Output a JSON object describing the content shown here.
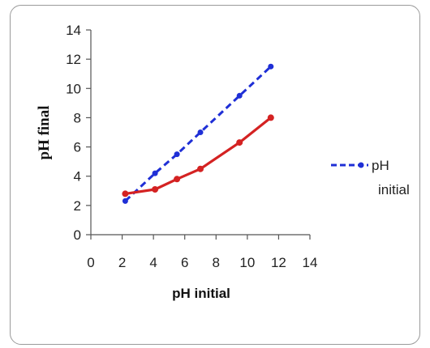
{
  "chart_data": {
    "type": "line",
    "xlabel": "pH initial",
    "ylabel": "pH final",
    "xlim": [
      0,
      14
    ],
    "ylim": [
      0,
      14
    ],
    "xticks": [
      "0",
      "2",
      "4",
      "6",
      "8",
      "10",
      "12",
      "14"
    ],
    "yticks": [
      "0",
      "2",
      "4",
      "6",
      "8",
      "10",
      "12",
      "14"
    ],
    "grid": false,
    "legend_position": "right",
    "series": [
      {
        "name": "pH initial",
        "style": "dashed",
        "color": "#1f2fd6",
        "x": [
          2.2,
          4.1,
          5.5,
          7.0,
          9.5,
          11.5
        ],
        "y": [
          2.3,
          4.2,
          5.5,
          7.0,
          9.5,
          11.5
        ]
      },
      {
        "style": "solid",
        "color": "#d42222",
        "x": [
          2.2,
          4.1,
          5.5,
          7.0,
          9.5,
          11.5
        ],
        "y": [
          2.8,
          3.1,
          3.8,
          4.5,
          6.3,
          8.0
        ]
      }
    ],
    "legend": {
      "entries": [
        {
          "label_line1": "pH",
          "label_line2": "initial",
          "series_index": 0
        }
      ]
    }
  }
}
